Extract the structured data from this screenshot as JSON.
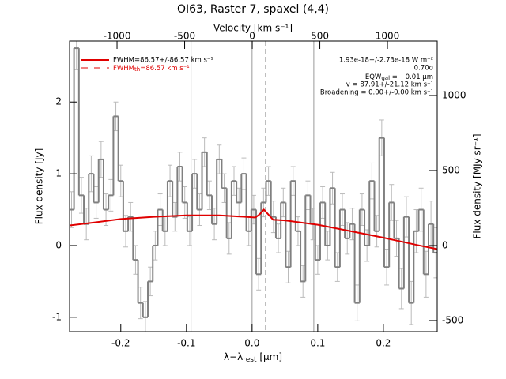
{
  "chart_data": {
    "type": "step",
    "title": "OI63, Raster 7, spaxel (4,4)",
    "xlabel_parts": [
      "λ−λ",
      "rest",
      " [μm]"
    ],
    "x2label": "Velocity [km s⁻¹]",
    "ylabel": "Flux density [Jy]",
    "y2label": "Flux density [MJy sr⁻¹]",
    "xlim": [
      -0.278,
      0.282
    ],
    "xticks": [
      -0.2,
      -0.1,
      {
        "value": 0,
        "label": "0.0"
      },
      0.1,
      0.2
    ],
    "x2lim": [
      -1351,
      1368
    ],
    "x2ticks": [
      -1000,
      -500,
      0,
      500,
      1000
    ],
    "ylim": [
      -1.2,
      2.85
    ],
    "yticks": [
      -1,
      0,
      1,
      2
    ],
    "y2lim": [
      -574,
      1363
    ],
    "y2ticks": [
      -500,
      0,
      500,
      1000
    ],
    "x": [
      -0.275,
      -0.2675,
      -0.26,
      -0.2525,
      -0.245,
      -0.2375,
      -0.23,
      -0.2225,
      -0.215,
      -0.2075,
      -0.2,
      -0.1925,
      -0.185,
      -0.1775,
      -0.17,
      -0.1625,
      -0.155,
      -0.1475,
      -0.14,
      -0.1325,
      -0.125,
      -0.1175,
      -0.11,
      -0.1025,
      -0.095,
      -0.0875,
      -0.08,
      -0.0725,
      -0.065,
      -0.0575,
      -0.05,
      -0.0425,
      -0.035,
      -0.0275,
      -0.02,
      -0.0125,
      -0.005,
      0.0025,
      0.01,
      0.0175,
      0.025,
      0.0325,
      0.04,
      0.0475,
      0.055,
      0.0625,
      0.07,
      0.0775,
      0.085,
      0.0925,
      0.1,
      0.1075,
      0.115,
      0.1225,
      0.13,
      0.1375,
      0.145,
      0.1525,
      0.16,
      0.1675,
      0.175,
      0.1825,
      0.19,
      0.1975,
      0.205,
      0.2125,
      0.22,
      0.2275,
      0.235,
      0.2425,
      0.25,
      0.2575,
      0.265,
      0.2725,
      0.28
    ],
    "series": [
      {
        "color": "#808080",
        "values": [
          0.5,
          2.75,
          0.7,
          0.3,
          1.0,
          0.6,
          1.2,
          0.5,
          0.7,
          1.8,
          0.9,
          0.2,
          0.4,
          -0.2,
          -0.8,
          -1.0,
          -0.5,
          0.0,
          0.5,
          0.2,
          0.9,
          0.4,
          1.1,
          0.6,
          0.2,
          1.0,
          0.5,
          1.3,
          0.7,
          0.3,
          1.2,
          0.8,
          0.1,
          0.9,
          0.6,
          1.0,
          0.2,
          0.5,
          -0.4,
          0.6,
          0.9,
          0.4,
          0.1,
          0.6,
          -0.3,
          0.9,
          0.2,
          -0.5,
          0.7,
          0.3,
          -0.2,
          0.6,
          0.0,
          0.8,
          -0.3,
          0.5,
          0.1,
          0.3,
          -0.8,
          0.5,
          0.0,
          0.9,
          0.2,
          1.5,
          -0.3,
          0.6,
          0.1,
          -0.6,
          0.4,
          -0.8,
          0.2,
          0.5,
          -0.4,
          0.3,
          -0.1
        ],
        "errors": [
          0.25,
          0.3,
          0.25,
          0.22,
          0.25,
          0.22,
          0.25,
          0.22,
          0.22,
          0.2,
          0.22,
          0.22,
          0.2,
          0.2,
          0.22,
          0.22,
          0.2,
          0.2,
          0.22,
          0.2,
          0.22,
          0.2,
          0.2,
          0.22,
          0.2,
          0.2,
          0.22,
          0.2,
          0.2,
          0.22,
          0.2,
          0.2,
          0.22,
          0.2,
          0.2,
          0.22,
          0.2,
          0.2,
          0.22,
          0.2,
          0.2,
          0.22,
          0.2,
          0.2,
          0.22,
          0.2,
          0.2,
          0.22,
          0.2,
          0.22,
          0.2,
          0.22,
          0.2,
          0.22,
          0.2,
          0.22,
          0.22,
          0.22,
          0.25,
          0.22,
          0.22,
          0.25,
          0.22,
          0.25,
          0.25,
          0.25,
          0.25,
          0.28,
          0.28,
          0.3,
          0.3,
          0.3,
          0.32,
          0.32,
          0.35
        ]
      }
    ],
    "fit": {
      "name": "FWHM=86.57+/-86.57 km s⁻¹",
      "color": "#e00000",
      "x": [
        -0.278,
        -0.25,
        -0.2,
        -0.15,
        -0.1,
        -0.05,
        -0.01,
        0.005,
        0.012,
        0.018,
        0.024,
        0.032,
        0.05,
        0.1,
        0.15,
        0.2,
        0.25,
        0.282
      ],
      "values": [
        0.28,
        0.31,
        0.37,
        0.4,
        0.42,
        0.42,
        0.4,
        0.39,
        0.44,
        0.5,
        0.44,
        0.36,
        0.35,
        0.29,
        0.2,
        0.11,
        0.01,
        -0.05
      ]
    },
    "fit_th": {
      "name_parts": [
        "FWHM",
        "th",
        "=86.57 km s⁻¹"
      ],
      "color": "#e00000"
    },
    "vlines": [
      {
        "value": -0.093,
        "dashed": false
      },
      {
        "value": 0,
        "dashed": false
      },
      {
        "value": 0.0205,
        "dashed": true
      },
      {
        "value": 0.094,
        "dashed": false
      }
    ],
    "annotations": [
      "1.93e-18+/-2.73e-18 W m⁻²",
      "0.70σ"
    ],
    "eqw_parts": [
      "EQW",
      "gal",
      " = −0.01 μm"
    ],
    "annotations2": [
      "v = 87.91+/-21.12 km s⁻¹",
      "Broadening = 0.00+/-0.00 km s⁻¹"
    ]
  }
}
